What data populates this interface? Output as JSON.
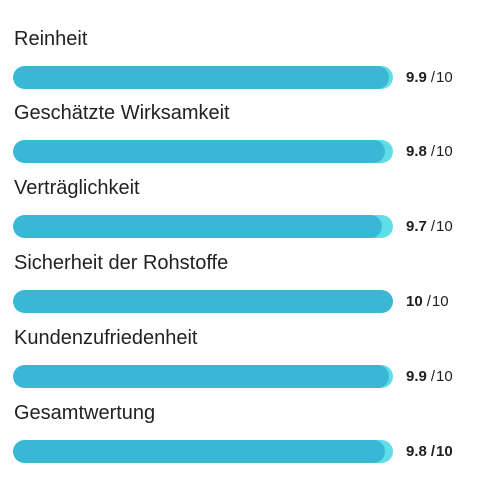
{
  "ratings": {
    "colors": {
      "fill": "#3bb7d6",
      "track": "#5fdde8",
      "text": "#222222"
    },
    "items": [
      {
        "label": "Reinheit",
        "score": "9.9",
        "separator": "/",
        "max": "10",
        "fraction": 0.99
      },
      {
        "label": "Geschätzte Wirksamkeit",
        "score": "9.8",
        "separator": "/",
        "max": "10",
        "fraction": 0.98
      },
      {
        "label": "Verträglichkeit",
        "score": "9.7",
        "separator": "/",
        "max": "10",
        "fraction": 0.97
      },
      {
        "label": "Sicherheit der Rohstoffe",
        "score": "10",
        "separator": "/",
        "max": "10",
        "fraction": 1.0
      },
      {
        "label": "Kundenzufriedenheit",
        "score": "9.9",
        "separator": "/",
        "max": "10",
        "fraction": 0.99
      },
      {
        "label": "Gesamtwertung",
        "score": "9.8",
        "separator": "/",
        "max": "10",
        "fraction": 0.98
      }
    ]
  }
}
